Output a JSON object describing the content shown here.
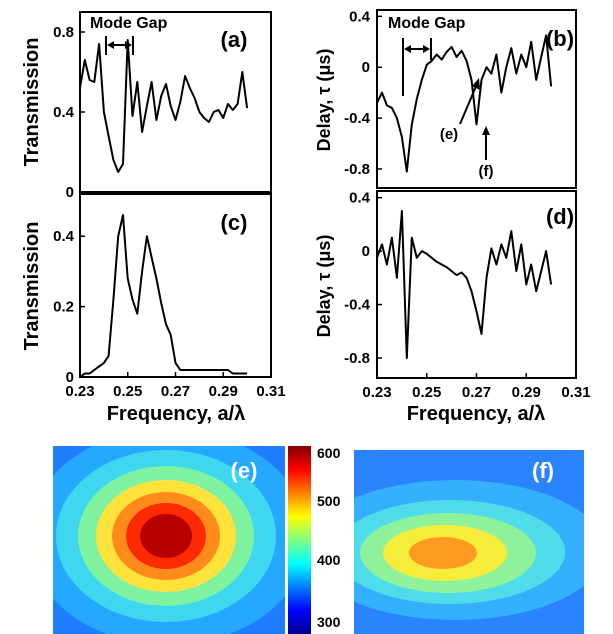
{
  "chart_data": [
    {
      "panel": "(a)",
      "type": "line",
      "ylabel": "Transmission",
      "xlim": [
        0.23,
        0.31
      ],
      "ylim": [
        0,
        0.9
      ],
      "yticks": [
        "0",
        "0.4",
        "0.8"
      ],
      "annotation": "Mode Gap",
      "series": [
        {
          "x": [
            0.23,
            0.232,
            0.234,
            0.236,
            0.238,
            0.24,
            0.242,
            0.244,
            0.246,
            0.248,
            0.25,
            0.252,
            0.254,
            0.256,
            0.258,
            0.26,
            0.262,
            0.264,
            0.266,
            0.268,
            0.27,
            0.272,
            0.274,
            0.276,
            0.278,
            0.28,
            0.282,
            0.284,
            0.286,
            0.288,
            0.29,
            0.292,
            0.294,
            0.296,
            0.298,
            0.3
          ],
          "y": [
            0.52,
            0.66,
            0.56,
            0.55,
            0.74,
            0.4,
            0.28,
            0.16,
            0.1,
            0.14,
            0.76,
            0.38,
            0.55,
            0.3,
            0.43,
            0.55,
            0.36,
            0.48,
            0.54,
            0.43,
            0.36,
            0.45,
            0.58,
            0.52,
            0.47,
            0.4,
            0.37,
            0.35,
            0.4,
            0.41,
            0.37,
            0.44,
            0.41,
            0.44,
            0.6,
            0.42
          ]
        }
      ]
    },
    {
      "panel": "(b)",
      "type": "line",
      "ylabel": "Delay, τ (μs)",
      "xlim": [
        0.23,
        0.31
      ],
      "ylim": [
        -0.95,
        0.45
      ],
      "yticks": [
        "0.4",
        "0",
        "-0.4",
        "-0.8"
      ],
      "annotation": "Mode Gap",
      "markers": [
        "(e)",
        "(f)"
      ],
      "series": [
        {
          "x": [
            0.23,
            0.232,
            0.234,
            0.236,
            0.238,
            0.24,
            0.242,
            0.244,
            0.246,
            0.248,
            0.25,
            0.252,
            0.254,
            0.256,
            0.258,
            0.26,
            0.262,
            0.264,
            0.266,
            0.268,
            0.27,
            0.272,
            0.274,
            0.276,
            0.278,
            0.28,
            0.282,
            0.284,
            0.286,
            0.288,
            0.29,
            0.292,
            0.294,
            0.296,
            0.298,
            0.3
          ],
          "y": [
            -0.28,
            -0.2,
            -0.3,
            -0.32,
            -0.4,
            -0.55,
            -0.82,
            -0.45,
            -0.25,
            -0.1,
            0.02,
            0.05,
            0.1,
            0.06,
            0.12,
            0.16,
            0.08,
            0.13,
            0.05,
            -0.1,
            -0.45,
            -0.1,
            0.0,
            -0.05,
            0.1,
            -0.2,
            0.0,
            0.15,
            -0.05,
            0.1,
            0.0,
            0.2,
            -0.1,
            0.08,
            0.25,
            -0.15
          ]
        }
      ]
    },
    {
      "panel": "(c)",
      "type": "line",
      "ylabel": "Transmission",
      "xlabel": "Frequency, a/λ",
      "xlim": [
        0.23,
        0.31
      ],
      "ylim": [
        0,
        0.52
      ],
      "xticks": [
        "0.23",
        "0.25",
        "0.27",
        "0.29",
        "0.31"
      ],
      "yticks": [
        "0",
        "0.2",
        "0.4"
      ],
      "series": [
        {
          "x": [
            0.23,
            0.232,
            0.234,
            0.236,
            0.238,
            0.24,
            0.242,
            0.244,
            0.246,
            0.248,
            0.25,
            0.252,
            0.254,
            0.256,
            0.258,
            0.26,
            0.262,
            0.264,
            0.266,
            0.268,
            0.27,
            0.272,
            0.274,
            0.276,
            0.278,
            0.28,
            0.282,
            0.284,
            0.286,
            0.288,
            0.29,
            0.292,
            0.294,
            0.296,
            0.298,
            0.3
          ],
          "y": [
            0.0,
            0.01,
            0.01,
            0.02,
            0.03,
            0.04,
            0.06,
            0.22,
            0.4,
            0.46,
            0.28,
            0.22,
            0.18,
            0.3,
            0.4,
            0.34,
            0.28,
            0.21,
            0.15,
            0.12,
            0.04,
            0.02,
            0.02,
            0.02,
            0.02,
            0.02,
            0.02,
            0.02,
            0.02,
            0.02,
            0.02,
            0.02,
            0.01,
            0.01,
            0.01,
            0.01
          ]
        }
      ]
    },
    {
      "panel": "(d)",
      "type": "line",
      "ylabel": "Delay, τ (μs)",
      "xlabel": "Frequency, a/λ",
      "xlim": [
        0.23,
        0.31
      ],
      "ylim": [
        -0.95,
        0.45
      ],
      "xticks": [
        "0.23",
        "0.25",
        "0.27",
        "0.29",
        "0.31"
      ],
      "yticks": [
        "0.4",
        "0",
        "-0.4",
        "-0.8"
      ],
      "series": [
        {
          "x": [
            0.23,
            0.232,
            0.234,
            0.236,
            0.238,
            0.24,
            0.242,
            0.244,
            0.246,
            0.248,
            0.25,
            0.252,
            0.254,
            0.256,
            0.258,
            0.26,
            0.262,
            0.264,
            0.266,
            0.268,
            0.27,
            0.272,
            0.274,
            0.276,
            0.278,
            0.28,
            0.282,
            0.284,
            0.286,
            0.288,
            0.29,
            0.292,
            0.294,
            0.296,
            0.298,
            0.3
          ],
          "y": [
            -0.05,
            0.05,
            -0.1,
            0.1,
            -0.2,
            0.3,
            -0.8,
            0.1,
            -0.05,
            0.0,
            -0.02,
            -0.05,
            -0.08,
            -0.1,
            -0.12,
            -0.15,
            -0.18,
            -0.16,
            -0.2,
            -0.3,
            -0.45,
            -0.62,
            -0.2,
            0.02,
            -0.1,
            0.05,
            -0.05,
            0.15,
            -0.15,
            0.05,
            -0.25,
            -0.1,
            -0.3,
            -0.15,
            0.0,
            -0.25
          ]
        }
      ]
    },
    {
      "panel": "(e)",
      "type": "heatmap",
      "colorbar_ticks": [
        "600",
        "500",
        "400",
        "300"
      ],
      "clim": [
        290,
        605
      ],
      "peak_value": 590
    },
    {
      "panel": "(f)",
      "type": "heatmap",
      "clim": [
        290,
        605
      ],
      "peak_value": 495
    }
  ]
}
